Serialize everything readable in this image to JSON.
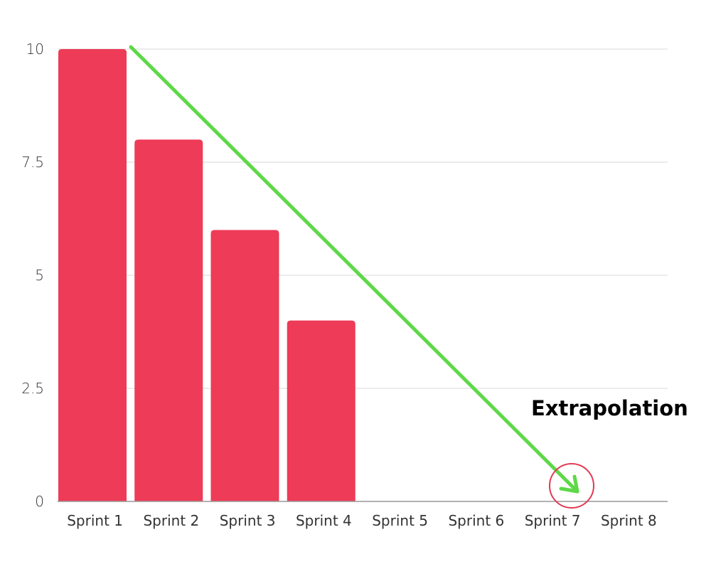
{
  "chart_data": {
    "type": "bar",
    "title": "",
    "xlabel": "",
    "ylabel": "",
    "categories": [
      "Sprint 1",
      "Sprint 2",
      "Sprint 3",
      "Sprint 4",
      "Sprint 5",
      "Sprint 6",
      "Sprint 7",
      "Sprint 8"
    ],
    "values": [
      10,
      8,
      6,
      4,
      null,
      null,
      null,
      null
    ],
    "ylim": [
      0,
      10
    ],
    "yticks": [
      0,
      2.5,
      5,
      7.5,
      10
    ],
    "ytick_labels": [
      "0",
      "2.5",
      "5",
      "7.5",
      "10"
    ],
    "grid": true,
    "legend": null,
    "bar_color": "#ee3b57",
    "annotations": [
      {
        "type": "arrow",
        "label": "trend-line",
        "from": {
          "category": "Sprint 1",
          "value": 10
        },
        "to": {
          "category": "Sprint 7",
          "value": 0
        },
        "color": "#5ed848"
      },
      {
        "type": "circle",
        "at": {
          "category": "Sprint 7",
          "value": 0
        },
        "color": "#e23a54"
      },
      {
        "type": "text",
        "text": "Extrapolation",
        "near": "Sprint 7"
      }
    ]
  },
  "annotation_text": "Extrapolation",
  "colors": {
    "bar": "#ee3b57",
    "trend": "#5ed848",
    "circle": "#e23a54",
    "grid": "#d9d9d9",
    "axis": "#999999"
  }
}
